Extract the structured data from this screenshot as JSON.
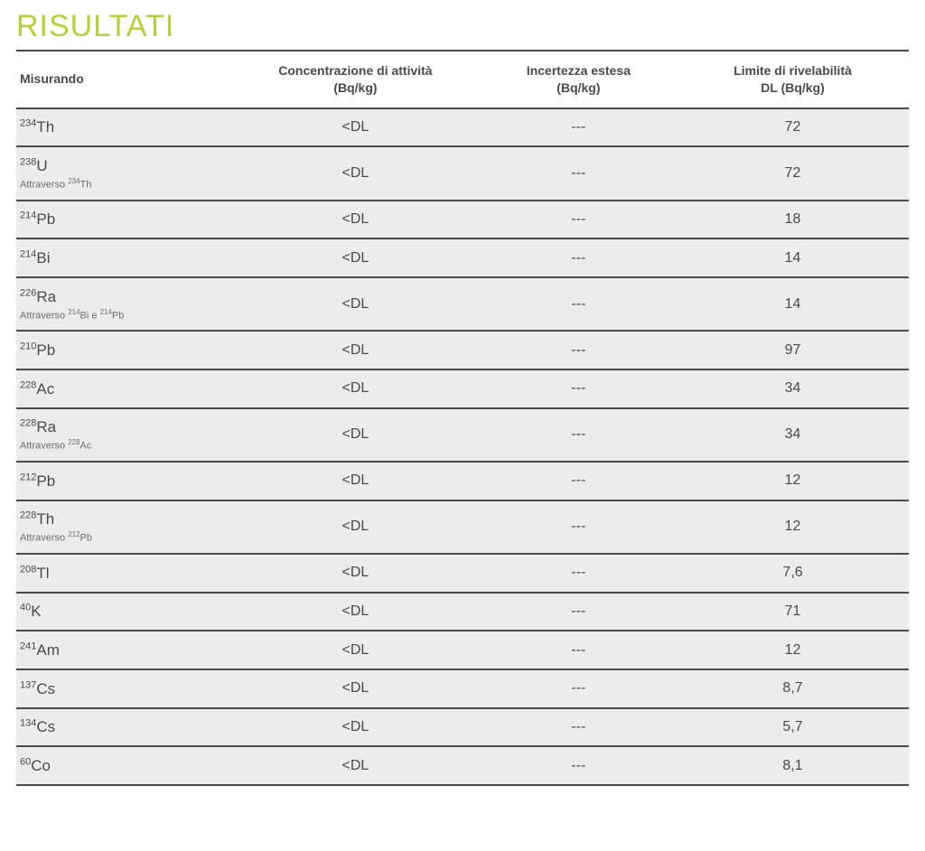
{
  "title": "RISULTATI",
  "table": {
    "type": "table",
    "background_color": "#ffffff",
    "row_background": "#ececec",
    "border_color": "#4a4a4a",
    "text_color": "#4a4a4a",
    "title_color": "#b8cf3a",
    "title_fontsize": 34,
    "header_fontsize": 14,
    "body_fontsize": 16,
    "sub_fontsize": 11,
    "column_widths_pct": [
      24,
      28,
      22,
      26
    ],
    "columns": [
      {
        "label_line1": "Misurando",
        "label_line2": ""
      },
      {
        "label_line1": "Concentrazione di attività",
        "label_line2": "(Bq/kg)"
      },
      {
        "label_line1": "Incertezza estesa",
        "label_line2": "(Bq/kg)"
      },
      {
        "label_line1": "Limite di rivelabilità",
        "label_line2": "DL (Bq/kg)"
      }
    ],
    "rows": [
      {
        "mass": "234",
        "sym": "Th",
        "sub_html": "",
        "conc": "<DL",
        "unc": "---",
        "dl": "72"
      },
      {
        "mass": "238",
        "sym": "U",
        "sub_html": "Attraverso <sup>234</sup>Th",
        "conc": "<DL",
        "unc": "---",
        "dl": "72"
      },
      {
        "mass": "214",
        "sym": "Pb",
        "sub_html": "",
        "conc": "<DL",
        "unc": "---",
        "dl": "18"
      },
      {
        "mass": "214",
        "sym": "Bi",
        "sub_html": "",
        "conc": "<DL",
        "unc": "---",
        "dl": "14"
      },
      {
        "mass": "226",
        "sym": "Ra",
        "sub_html": "Attraverso <sup>214</sup>Bi e <sup>214</sup>Pb",
        "conc": "<DL",
        "unc": "---",
        "dl": "14"
      },
      {
        "mass": "210",
        "sym": "Pb",
        "sub_html": "",
        "conc": "<DL",
        "unc": "---",
        "dl": "97"
      },
      {
        "mass": "228",
        "sym": "Ac",
        "sub_html": "",
        "conc": "<DL",
        "unc": "---",
        "dl": "34"
      },
      {
        "mass": "228",
        "sym": "Ra",
        "sub_html": "Attraverso <sup>228</sup>Ac",
        "conc": "<DL",
        "unc": "---",
        "dl": "34"
      },
      {
        "mass": "212",
        "sym": "Pb",
        "sub_html": "",
        "conc": "<DL",
        "unc": "---",
        "dl": "12"
      },
      {
        "mass": "228",
        "sym": "Th",
        "sub_html": "Attraverso <sup>212</sup>Pb",
        "conc": "<DL",
        "unc": "---",
        "dl": "12"
      },
      {
        "mass": "208",
        "sym": "Tl",
        "sub_html": "",
        "conc": "<DL",
        "unc": "---",
        "dl": "7,6"
      },
      {
        "mass": "40",
        "sym": "K",
        "sub_html": "",
        "conc": "<DL",
        "unc": "---",
        "dl": "71"
      },
      {
        "mass": "241",
        "sym": "Am",
        "sub_html": "",
        "conc": "<DL",
        "unc": "---",
        "dl": "12"
      },
      {
        "mass": "137",
        "sym": "Cs",
        "sub_html": "",
        "conc": "<DL",
        "unc": "---",
        "dl": "8,7"
      },
      {
        "mass": "134",
        "sym": "Cs",
        "sub_html": "",
        "conc": "<DL",
        "unc": "---",
        "dl": "5,7"
      },
      {
        "mass": "60",
        "sym": "Co",
        "sub_html": "",
        "conc": "<DL",
        "unc": "---",
        "dl": "8,1"
      }
    ]
  }
}
